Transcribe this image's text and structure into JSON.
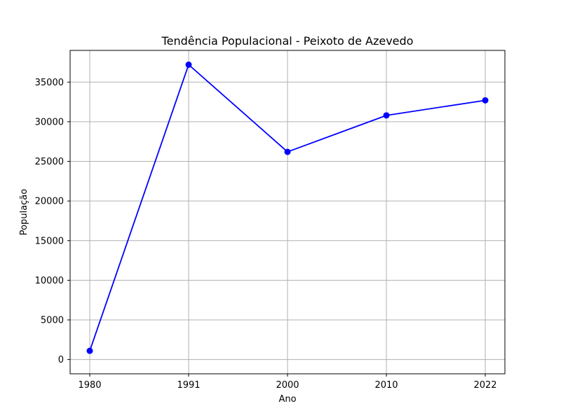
{
  "chart_data": {
    "type": "line",
    "title": "Tendência Populacional - Peixoto de Azevedo",
    "xlabel": "Ano",
    "ylabel": "População",
    "categories": [
      "1980",
      "1991",
      "2000",
      "2010",
      "2022"
    ],
    "series": [
      {
        "values": [
          1100,
          37200,
          26200,
          30800,
          32700
        ],
        "color": "#0000ff",
        "marker": "circle"
      }
    ],
    "ylim": [
      -1800,
      39000
    ],
    "yticks": [
      0,
      5000,
      10000,
      15000,
      20000,
      25000,
      30000,
      35000
    ],
    "ytick_labels": [
      "0",
      "5000",
      "10000",
      "15000",
      "20000",
      "25000",
      "30000",
      "35000"
    ],
    "grid": true,
    "grid_color": "#b0b0b0",
    "axis_color": "#000000",
    "legend": false
  }
}
